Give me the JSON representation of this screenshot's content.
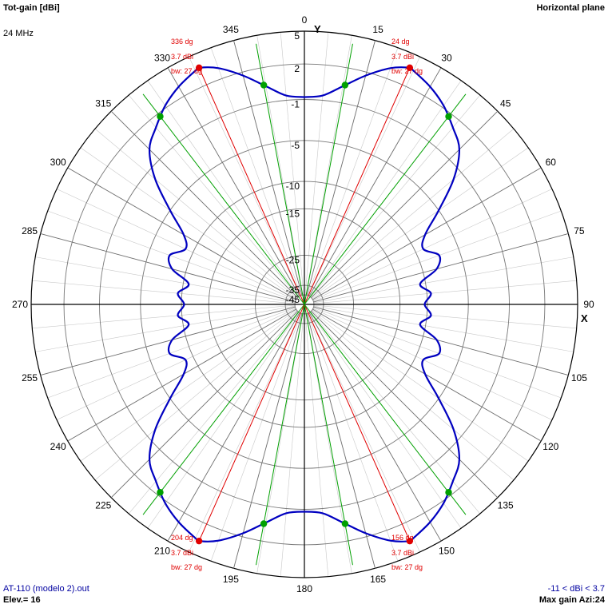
{
  "header": {
    "title": "Tot-gain [dBi]",
    "frequency": "24 MHz",
    "plane": "Horizontal plane"
  },
  "footer": {
    "file": "AT-110 (modelo 2).out",
    "elevation": "Elev.= 16",
    "range": "-11 < dBi < 3.7",
    "max_gain": "Max gain Azi:24"
  },
  "colors": {
    "pattern": "#0000c0",
    "marker_main": "#e00000",
    "marker_side": "#00a000",
    "beam_red": "#e00000",
    "beam_green": "#00a000",
    "grid": "#808080"
  },
  "chart_data": {
    "type": "polar-line",
    "title": "Tot-gain [dBi]",
    "axis_labels": {
      "y": "Y",
      "x": "X"
    },
    "angle_ticks": [
      "0",
      "15",
      "30",
      "45",
      "60",
      "75",
      "90",
      "105",
      "120",
      "135",
      "150",
      "165",
      "180",
      "195",
      "210",
      "225",
      "240",
      "255",
      "270",
      "285",
      "300",
      "315",
      "330",
      "345"
    ],
    "ring_labels": [
      {
        "label": "5",
        "dbi": 5
      },
      {
        "label": "2",
        "dbi": 2
      },
      {
        "label": "-1",
        "dbi": -1
      },
      {
        "label": "-5",
        "dbi": -5
      },
      {
        "label": "-10",
        "dbi": -10
      },
      {
        "label": "-15",
        "dbi": -15
      },
      {
        "label": "-25",
        "dbi": -25
      },
      {
        "label": "-35",
        "dbi": -35
      },
      {
        "label": "-45",
        "dbi": -45
      }
    ],
    "series": [
      {
        "azimuth_deg": [
          0,
          5,
          10,
          15,
          20,
          24,
          25,
          30,
          35,
          40,
          45,
          50,
          55,
          60,
          65,
          70,
          75,
          80,
          85,
          90
        ],
        "gain_dbi": [
          -0.8,
          -0.6,
          0.4,
          1.7,
          3.0,
          3.7,
          3.6,
          3.0,
          2.2,
          1.2,
          0.2,
          -2.0,
          -5.0,
          -8.0,
          -9.0,
          -7.5,
          -8.3,
          -11.0,
          -9.5,
          -10.5
        ],
        "symmetry": "mirrored about 0/180 and 90/270 axes"
      }
    ],
    "beams": [
      {
        "azimuth_deg": 24,
        "label": "24 dg",
        "gain": "3.7 dBi",
        "bw": "bw: 27 dg"
      },
      {
        "azimuth_deg": 336,
        "label": "336 dg",
        "gain": "3.7 dBi",
        "bw": "bw: 27 dg"
      },
      {
        "azimuth_deg": 156,
        "label": "156 dg",
        "gain": "3.7 dBi",
        "bw": "bw: 27 dg"
      },
      {
        "azimuth_deg": 204,
        "label": "204 dg",
        "gain": "3.7 dBi",
        "bw": "bw: 27 dg"
      }
    ],
    "beamwidth_deg": 27,
    "half_power_points_deg": [
      10.5,
      37.5
    ]
  }
}
